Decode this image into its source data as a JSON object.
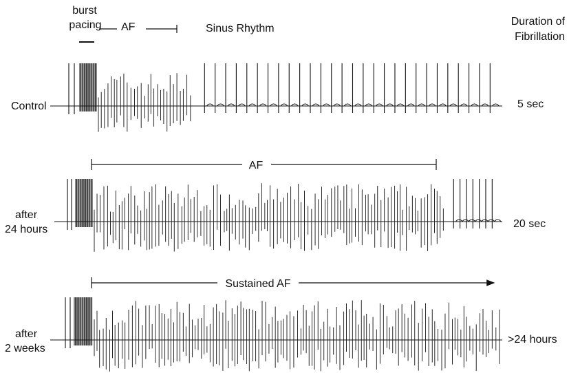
{
  "header": {
    "burst_line1": "burst",
    "burst_line2": "pacing",
    "af_label": "AF",
    "sinus_label": "Sinus Rhythm",
    "duration_line1": "Duration of",
    "duration_line2": "Fibrillation"
  },
  "traces": [
    {
      "label_lines": [
        "Control"
      ],
      "duration": "5 sec",
      "af_annotation": "",
      "af_end_fraction": 0.24,
      "sinus_beats": 28
    },
    {
      "label_lines": [
        "after",
        "24 hours"
      ],
      "duration": "20 sec",
      "af_annotation": "AF",
      "af_end_fraction": 0.86,
      "sinus_beats": 7
    },
    {
      "label_lines": [
        "after",
        "2 weeks"
      ],
      "duration": ">24 hours",
      "af_annotation": "Sustained AF",
      "af_end_fraction": 1.0,
      "sinus_beats": 0
    }
  ],
  "colors": {
    "ink": "#111111",
    "background": "#ffffff"
  }
}
